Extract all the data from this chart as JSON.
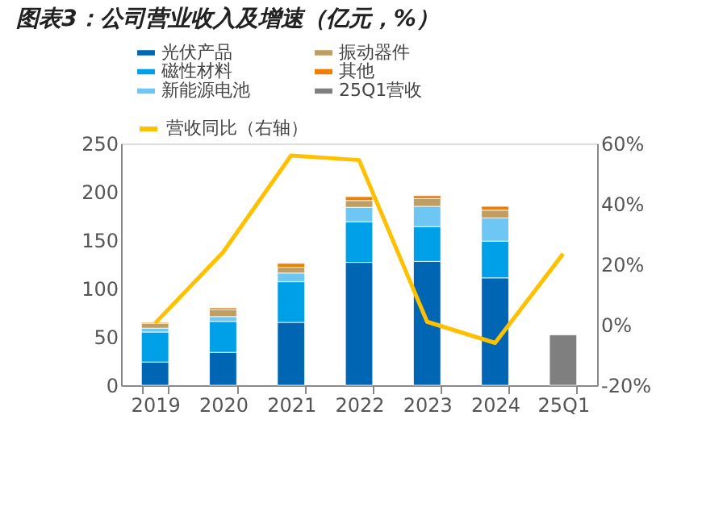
{
  "chart_data": {
    "type": "bar",
    "title": "图表3：公司营业收入及增速（亿元，%）",
    "categories": [
      "2019",
      "2020",
      "2021",
      "2022",
      "2023",
      "2024",
      "25Q1"
    ],
    "stacked": true,
    "series": [
      {
        "name": "光伏产品",
        "color": "#0066b3",
        "values": [
          24,
          34,
          65,
          127,
          128,
          111,
          null
        ]
      },
      {
        "name": "磁性材料",
        "color": "#00a0e9",
        "values": [
          31,
          32,
          42,
          42,
          36,
          38,
          null
        ]
      },
      {
        "name": "新能源电池",
        "color": "#6ec6f3",
        "values": [
          4,
          5,
          9,
          15,
          21,
          24,
          null
        ]
      },
      {
        "name": "振动器件",
        "color": "#c09e62",
        "values": [
          5,
          7,
          6,
          7,
          8,
          8,
          null
        ]
      },
      {
        "name": "其他",
        "color": "#ee7d00",
        "values": [
          1,
          2,
          4,
          4,
          3,
          4,
          null
        ]
      },
      {
        "name": "25Q1营收",
        "color": "#7f7f7f",
        "values": [
          null,
          null,
          null,
          null,
          null,
          null,
          52
        ]
      },
      {
        "name": "营收同比（右轴）",
        "color": "#ffc000",
        "type": "line",
        "axis": "y2",
        "values": [
          0.5,
          24,
          56,
          54.5,
          1,
          -6,
          23.5
        ]
      }
    ],
    "ylim": [
      0,
      250
    ],
    "yticks": [
      0,
      50,
      100,
      150,
      200,
      250
    ],
    "y2lim": [
      -20,
      60
    ],
    "y2ticks": [
      {
        "value": -20,
        "label": "-20%"
      },
      {
        "value": 0,
        "label": "0%"
      },
      {
        "value": 20,
        "label": "20%"
      },
      {
        "value": 40,
        "label": "40%"
      },
      {
        "value": 60,
        "label": "60%"
      }
    ],
    "legend": "top left",
    "grid": false,
    "marker": "none"
  }
}
